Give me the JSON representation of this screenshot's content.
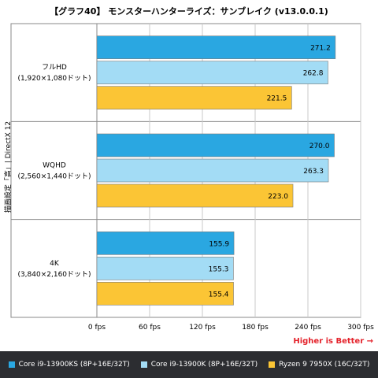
{
  "chart_data": {
    "type": "bar",
    "orientation": "horizontal",
    "title": "【グラフ40】 モンスターハンターライズ：サンブレイク (v13.0.0.1)",
    "ylabel": "描画設定「高」| DirectX 12",
    "xlim": [
      0,
      300
    ],
    "x_ticks": [
      "0 fps",
      "60 fps",
      "120 fps",
      "180 fps",
      "240 fps",
      "300 fps"
    ],
    "x_tick_values": [
      0,
      60,
      120,
      180,
      240,
      300
    ],
    "grid": true,
    "legend_placement": "bottom",
    "note": "Higher is Better →",
    "categories": [
      {
        "name": "フルHD",
        "sub": "(1,920×1,080ドット)"
      },
      {
        "name": "WQHD",
        "sub": "(2,560×1,440ドット)"
      },
      {
        "name": "4K",
        "sub": "(3,840×2,160ドット)"
      }
    ],
    "series": [
      {
        "name": "Core i9-13900KS (8P+16E/32T)",
        "color": "#2aa7e1",
        "values": [
          271.2,
          270.0,
          155.9
        ],
        "labels": [
          "271.2",
          "270.0",
          "155.9"
        ]
      },
      {
        "name": "Core i9-13900K (8P+16E/32T)",
        "color": "#a3dcf5",
        "values": [
          262.8,
          263.3,
          155.3
        ],
        "labels": [
          "262.8",
          "263.3",
          "155.3"
        ]
      },
      {
        "name": "Ryzen 9 7950X (16C/32T)",
        "color": "#fbc535",
        "values": [
          221.5,
          223.0,
          155.4
        ],
        "labels": [
          "221.5",
          "223.0",
          "155.4"
        ]
      }
    ]
  }
}
